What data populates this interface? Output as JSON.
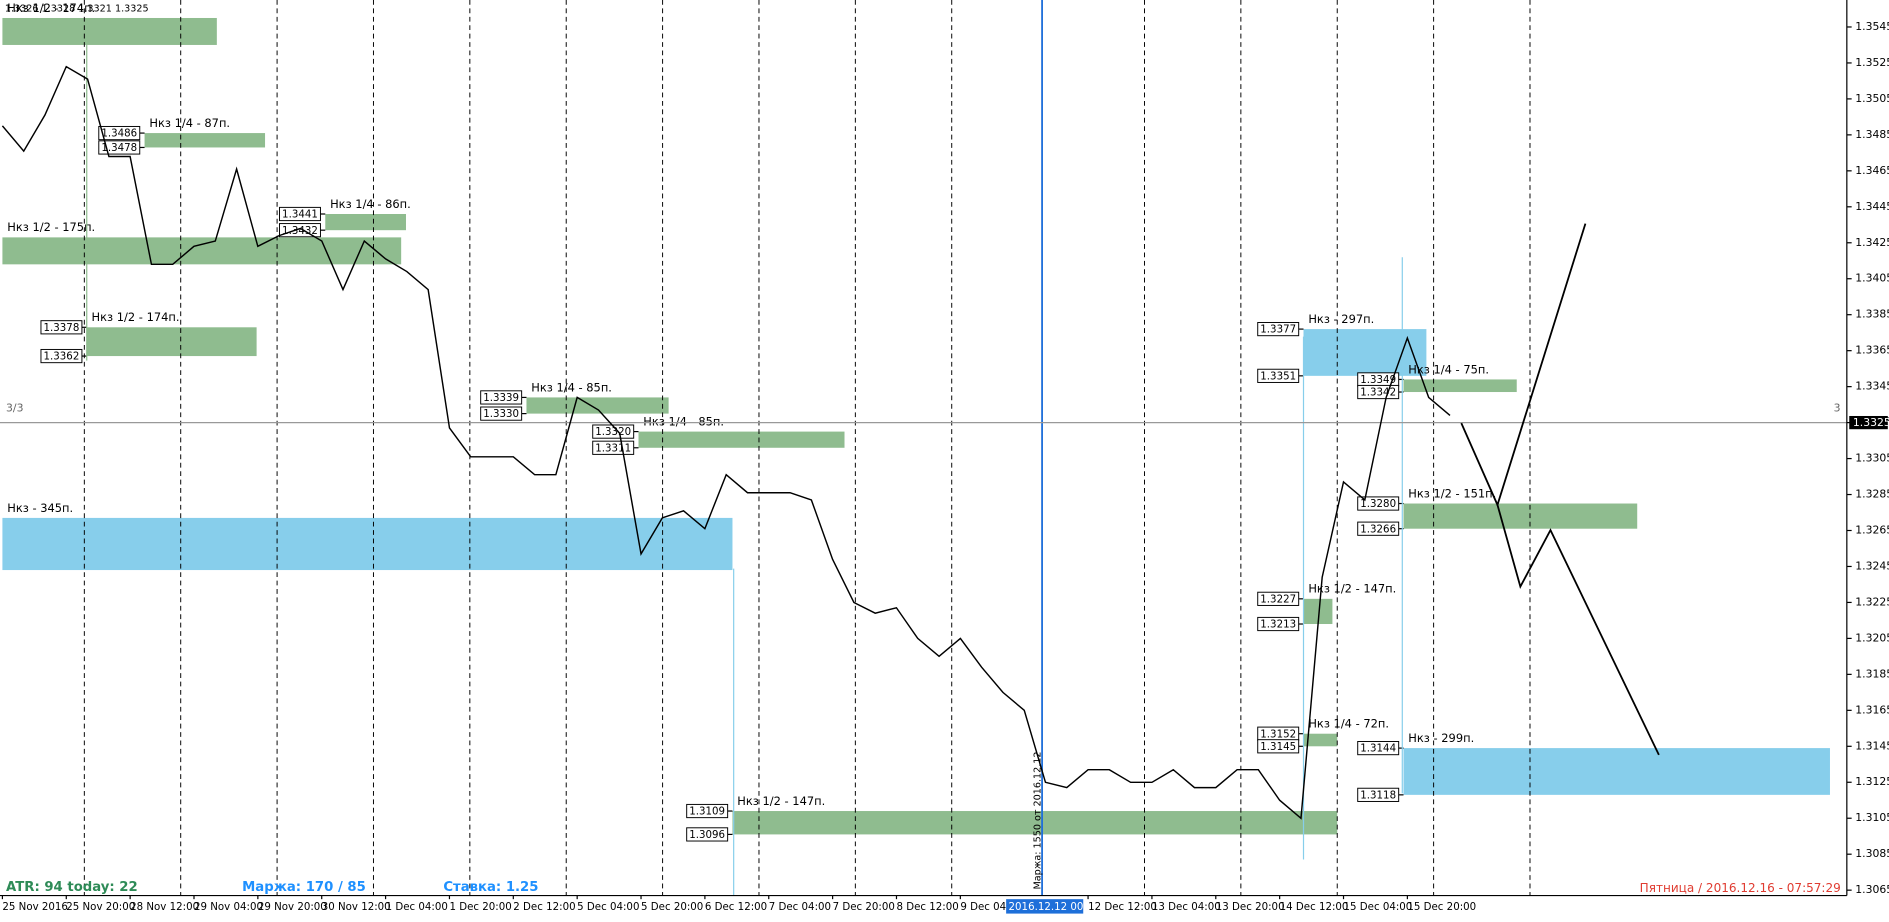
{
  "chart_data": {
    "type": "line",
    "title": "1.3326 1.3328 1.3321 1.3325",
    "categories": [
      "25 Nov 2016",
      null,
      null,
      "25 Nov 20:00",
      null,
      null,
      "28 Nov 12:00",
      null,
      null,
      "29 Nov 04:00",
      null,
      null,
      "29 Nov 20:00",
      null,
      null,
      "30 Nov 12:00",
      null,
      null,
      "1 Dec 04:00",
      null,
      null,
      "1 Dec 20:00",
      null,
      null,
      "2 Dec 12:00",
      null,
      null,
      "5 Dec 04:00",
      null,
      null,
      "5 Dec 20:00",
      null,
      null,
      "6 Dec 12:00",
      null,
      null,
      "7 Dec 04:00",
      null,
      null,
      "7 Dec 20:00",
      null,
      null,
      "8 Dec 12:00",
      null,
      null,
      "9 Dec 04:00",
      null,
      null,
      "2016.12.12 00:00",
      null,
      null,
      "12 Dec 12:00",
      null,
      null,
      "13 Dec 04:00",
      null,
      null,
      "13 Dec 20:00",
      null,
      null,
      "14 Dec 12:00",
      null,
      null,
      "15 Dec 04:00",
      null,
      null,
      "15 Dec 20:00",
      null,
      null
    ],
    "values": [
      1.349,
      1.3476,
      1.3496,
      1.3523,
      1.3516,
      1.3473,
      1.3473,
      1.3413,
      1.3413,
      1.3423,
      1.3426,
      1.3466,
      1.3423,
      1.3429,
      1.3433,
      1.3426,
      1.3399,
      1.3426,
      1.3416,
      1.3409,
      1.3399,
      1.3322,
      1.3306,
      1.3306,
      1.3306,
      1.3296,
      1.3296,
      1.3339,
      1.3332,
      1.3319,
      1.3252,
      1.3272,
      1.3276,
      1.3266,
      1.3296,
      1.3286,
      1.3286,
      1.3286,
      1.3282,
      1.3249,
      1.3225,
      1.3219,
      1.3222,
      1.3205,
      1.3195,
      1.3205,
      1.3189,
      1.3175,
      1.3165,
      1.3125,
      1.3122,
      1.3132,
      1.3132,
      1.3125,
      1.3125,
      1.3132,
      1.3122,
      1.3122,
      1.3132,
      1.3132,
      1.3115,
      1.3105,
      1.3239,
      1.3292,
      1.3282,
      1.3339,
      1.3372,
      1.3339,
      1.3329
    ],
    "color": "#000000",
    "ylim": [
      1.3062,
      1.356
    ],
    "yticks": [
      1.3545,
      1.3525,
      1.3505,
      1.3485,
      1.3465,
      1.3445,
      1.3425,
      1.3405,
      1.3385,
      1.3365,
      1.3345,
      1.3325,
      1.3305,
      1.3285,
      1.3265,
      1.3245,
      1.3225,
      1.3205,
      1.3185,
      1.3165,
      1.3145,
      1.3125,
      1.3105,
      1.3085,
      1.3065
    ],
    "grid": false,
    "last_price": 1.3325,
    "zones": [
      {
        "label": "Нкз 1/2 - 174п.",
        "color": "#8fbc8f",
        "levels": [
          1.355,
          1.3535
        ],
        "show_levels": false
      },
      {
        "label": "Нкз 1/4 - 87п.",
        "color": "#8fbc8f",
        "levels": [
          1.3486,
          1.3478
        ],
        "show_levels": true
      },
      {
        "label": "Нкз 1/4 - 86п.",
        "color": "#8fbc8f",
        "levels": [
          1.3441,
          1.3432
        ],
        "show_levels": true
      },
      {
        "label": "Нкз 1/2 - 175п.",
        "color": "#8fbc8f",
        "levels": [
          1.3428,
          1.3413
        ],
        "show_levels": false
      },
      {
        "label": "Нкз 1/2 - 174п.",
        "color": "#8fbc8f",
        "levels": [
          1.3378,
          1.3362
        ],
        "show_levels": true
      },
      {
        "label": "Нкз 1/4 - 85п.",
        "color": "#8fbc8f",
        "levels": [
          1.3339,
          {
            "value": 1.333,
            "label": "1.3330"
          }
        ],
        "show_levels": true
      },
      {
        "label": "Нкз 1/4 - 85п.",
        "color": "#8fbc8f",
        "levels": [
          {
            "value": 1.332,
            "label": "1.3320"
          },
          1.3311
        ],
        "show_levels": true
      },
      {
        "label": "Нкз - 345п.",
        "color": "#87ceeb",
        "levels": [
          1.3272,
          1.3243
        ],
        "show_levels": false
      },
      {
        "label": "Нкз 1/2 - 147п.",
        "color": "#8fbc8f",
        "levels": [
          1.3109,
          1.3096
        ],
        "show_levels": true
      },
      {
        "label": "Нкз - 297п.",
        "color": "#87ceeb",
        "levels": [
          1.3377,
          1.3351
        ],
        "show_levels": true
      },
      {
        "label": "Нкз 1/4 - 75п.",
        "color": "#8fbc8f",
        "levels": [
          1.3349,
          1.3342
        ],
        "show_levels": true
      },
      {
        "label": "Нкз 1/2 - 151п.",
        "color": "#8fbc8f",
        "levels": [
          {
            "value": 1.328,
            "label": "1.3280"
          },
          1.3266
        ],
        "show_levels": true
      },
      {
        "label": "Нкз 1/2 - 147п.",
        "color": "#8fbc8f",
        "levels": [
          1.3227,
          1.3213
        ],
        "show_levels": true
      },
      {
        "label": "Нкз 1/4 - 72п.",
        "color": "#8fbc8f",
        "levels": [
          1.3152,
          1.3145
        ],
        "show_levels": true
      },
      {
        "label": "Нкз - 299п.",
        "color": "#87ceeb",
        "levels": [
          1.3144,
          1.3118
        ],
        "show_levels": true
      }
    ],
    "annotations": {
      "atr": "ATR: 94  today: 22",
      "margin": "Маржа: 170 / 85",
      "rate": "Ставка: 1.25",
      "clock": "Пятница / 2016.12.16 - 07:57:29",
      "margin_note": "Маржа: 1550  от  2016.12.12",
      "window_left": "3/3",
      "window_right": "3"
    }
  }
}
